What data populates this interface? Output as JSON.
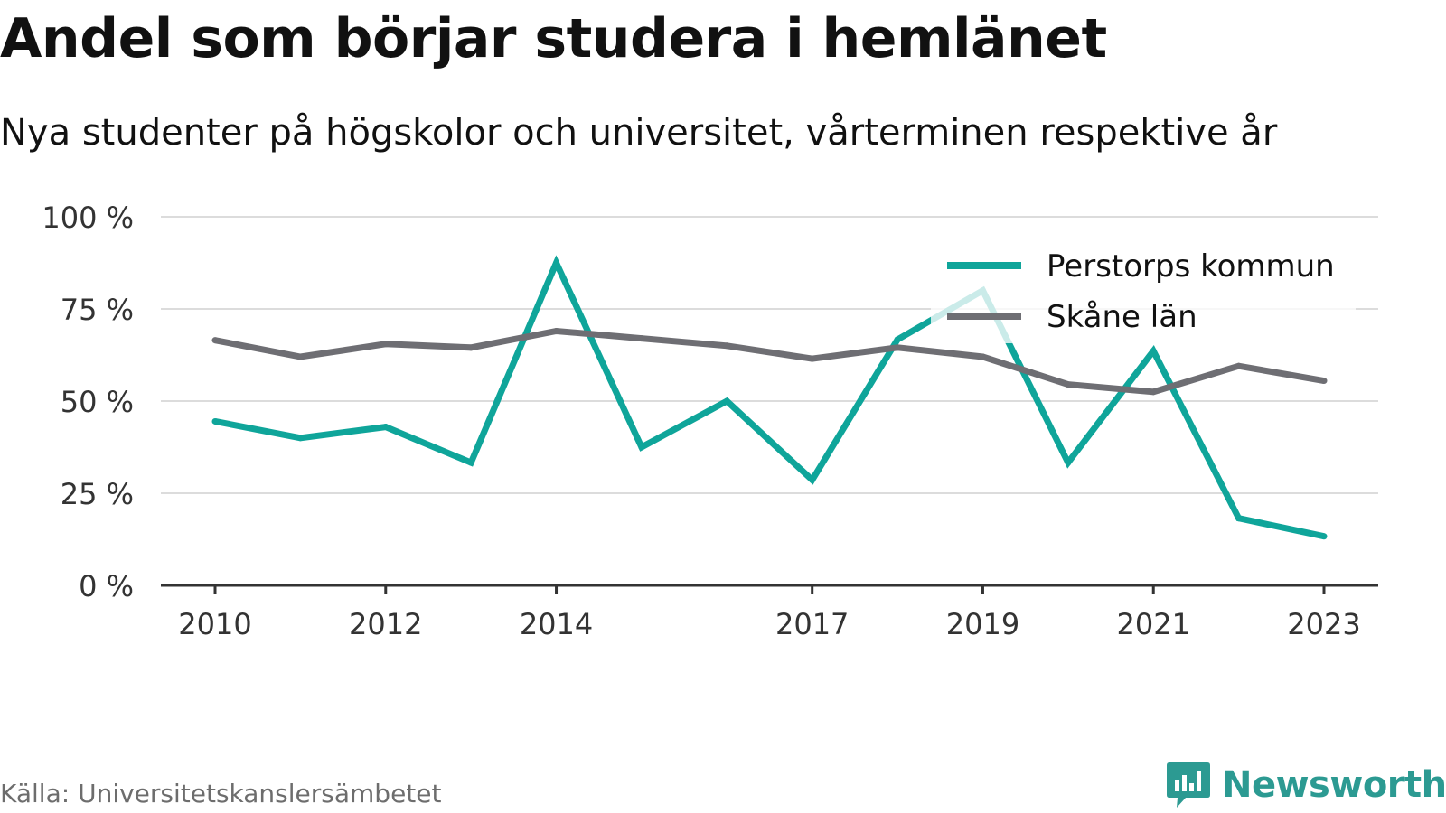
{
  "title": "Andel som börjar studera i hemlänet",
  "subtitle": "Nya studenter på högskolor och universitet, vårterminen respektive år",
  "source": "Källa: Universitetskanslersämbetet",
  "brand": {
    "name": "Newsworthy",
    "icon": "bar-chart-logo-icon",
    "color": "#2c9a92"
  },
  "chart_data": {
    "type": "line",
    "x": [
      2010,
      2011,
      2012,
      2013,
      2014,
      2015,
      2016,
      2017,
      2018,
      2019,
      2020,
      2021,
      2022,
      2023
    ],
    "x_ticks": [
      "2010",
      "2012",
      "2014",
      "2017",
      "2019",
      "2021",
      "2023"
    ],
    "y_ticks": [
      "0 %",
      "25 %",
      "50 %",
      "75 %",
      "100 %"
    ],
    "ylim": [
      0,
      100
    ],
    "grid": true,
    "legend_position": "top-right",
    "series": [
      {
        "name": "Perstorps kommun",
        "color": "#0fa59a",
        "values": [
          44.5,
          40,
          43,
          33.3,
          87.5,
          37.5,
          50,
          28.6,
          66.7,
          80,
          33.3,
          63.6,
          18.2,
          13.3
        ]
      },
      {
        "name": "Skåne län",
        "color": "#6e6e73",
        "values": [
          66.5,
          62,
          65.5,
          64.5,
          69,
          67,
          65,
          61.5,
          64.5,
          62,
          54.5,
          52.5,
          59.5,
          55.5
        ]
      }
    ]
  }
}
